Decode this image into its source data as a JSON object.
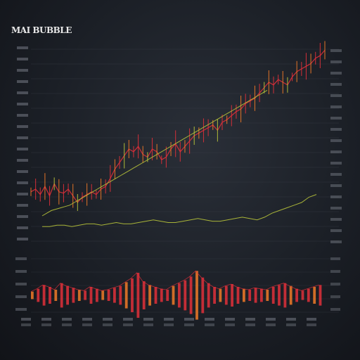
{
  "title": "MAI BUBBLE",
  "colors": {
    "background": "#1b1f26",
    "grid": "#3a3f48",
    "red": "#e0303a",
    "orange": "#f07a28",
    "yellow_green": "#b8c43a",
    "label": "#8a8f98"
  },
  "chart_data": [
    {
      "type": "line",
      "panel": "price",
      "grid": true,
      "x_range": [
        0,
        100
      ],
      "series": [
        {
          "color": "red",
          "values": [
            38,
            40,
            36,
            42,
            35,
            44,
            38,
            37,
            40,
            35,
            30,
            34,
            36,
            38,
            36,
            40,
            42,
            48,
            55,
            60,
            65,
            70,
            68,
            72,
            66,
            64,
            70,
            68,
            62,
            64,
            70,
            74,
            68,
            72,
            76,
            80,
            82,
            84,
            86,
            88,
            84,
            90,
            92,
            95,
            98,
            100,
            104,
            106,
            108,
            112,
            116,
            120,
            118,
            122,
            120,
            118,
            124,
            128,
            130,
            132,
            134,
            138,
            140,
            144
          ]
        },
        {
          "color": "yellow_green",
          "values": [
            20,
            22,
            24,
            25,
            26,
            27,
            28,
            30,
            32,
            34,
            36,
            38,
            40,
            42,
            44,
            46,
            48,
            50,
            52,
            54,
            56,
            58,
            60,
            62,
            64,
            66,
            68,
            70,
            72,
            74,
            76,
            78,
            80,
            82,
            84,
            86,
            88,
            90,
            92,
            94,
            96,
            98,
            100,
            102,
            104,
            106,
            108,
            110,
            112,
            114
          ]
        },
        {
          "color": "yellow_green",
          "values": [
            12,
            12,
            13,
            13,
            12,
            13,
            14,
            14,
            13,
            14,
            15,
            14,
            14,
            15,
            16,
            17,
            16,
            15,
            15,
            16,
            17,
            18,
            17,
            16,
            16,
            17,
            18,
            19,
            18,
            17,
            19,
            22,
            24,
            26,
            28,
            30,
            34,
            36
          ]
        }
      ]
    },
    {
      "type": "bar",
      "panel": "volume",
      "values": [
        8,
        14,
        22,
        18,
        12,
        26,
        20,
        16,
        12,
        10,
        18,
        14,
        10,
        12,
        16,
        20,
        28,
        36,
        48,
        30,
        22,
        18,
        14,
        12,
        20,
        26,
        32,
        40,
        52,
        38,
        26,
        18,
        14,
        20,
        24,
        18,
        14,
        12,
        16,
        14,
        12,
        18,
        22,
        26,
        20,
        14,
        10,
        14,
        18,
        22
      ]
    }
  ]
}
